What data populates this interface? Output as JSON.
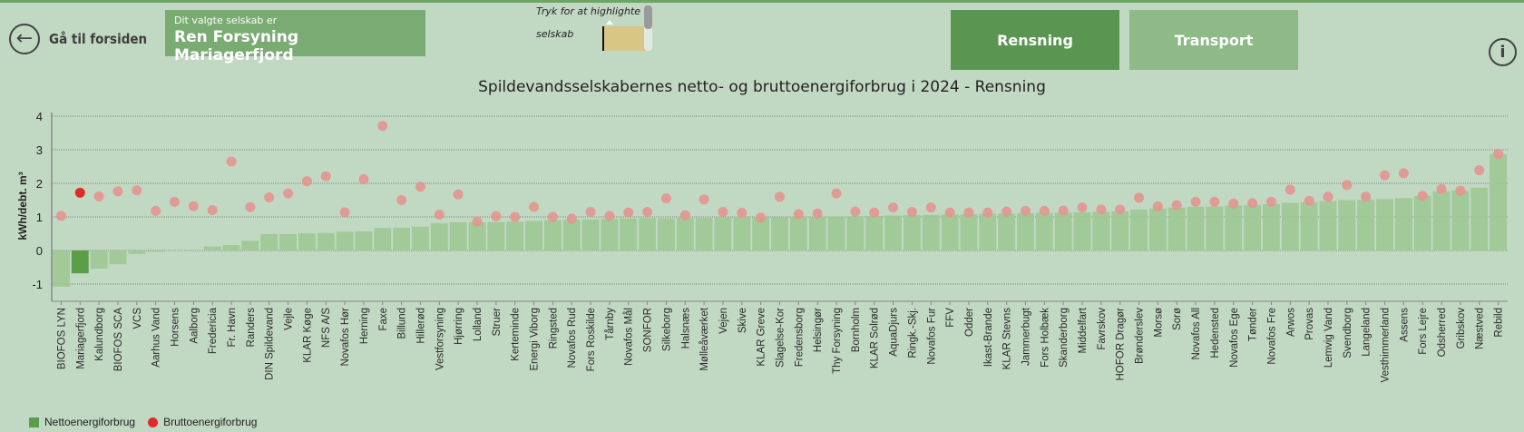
{
  "header": {
    "back_label": "Gå til forsiden",
    "selected_caption": "Dit valgte selskab er",
    "selected_company": "Ren Forsyning Mariagerfjord",
    "highlight_line1": "Tryk for at highlighte",
    "highlight_line2": "selskab",
    "tabs": [
      {
        "label": "Rensning",
        "active": true
      },
      {
        "label": "Transport",
        "active": false
      }
    ],
    "info_icon": "info-icon",
    "back_icon": "arrow-left-circle-icon"
  },
  "colors": {
    "net": "#9cc791",
    "net_selected": "#5a9e4c",
    "gross": "#e3968f",
    "gross_selected": "#e02a2a",
    "background": "#c1d8c3"
  },
  "chart_data": {
    "type": "bar+scatter",
    "title": "Spildevandsselskabernes netto- og bruttoenergiforbrug i 2024 - Rensning",
    "ylabel": "kWh/debt. m³",
    "xlabel": "",
    "ylim": [
      -1.5,
      4
    ],
    "yticks": [
      -1,
      0,
      1,
      2,
      3,
      4
    ],
    "grid": true,
    "legend_position": "bottom-left",
    "highlighted": "Mariagerfjord",
    "categories": [
      "BIOFOS LYN",
      "Mariagerfjord",
      "Kalundborg",
      "BIOFOS SCA",
      "VCS",
      "Aarhus Vand",
      "Horsens",
      "Aalborg",
      "Fredericia",
      "Fr. Havn",
      "Randers",
      "DIN Spildevand",
      "Vejle",
      "KLAR Køge",
      "NFS A/S",
      "Novafos Hør",
      "Herning",
      "Faxe",
      "Billund",
      "Hillerød",
      "Vestforsyning",
      "Hjørring",
      "Lolland",
      "Struer",
      "Kerteminde",
      "Energi Viborg",
      "Ringsted",
      "Novafos Rud",
      "Fors Roskilde",
      "Tårnby",
      "Novafos Mål",
      "SONFOR",
      "Silkeborg",
      "Halsnæs",
      "Mølleåværket",
      "Vejen",
      "Skive",
      "KLAR Greve",
      "Slagelse-Kor",
      "Fredensborg",
      "Helsingør",
      "Thy Forsyning",
      "Bornholm",
      "KLAR Solrød",
      "AquaDjurs",
      "Ringk.-Skj.",
      "Novafos Fur",
      "FFV",
      "Odder",
      "Ikast-Brande",
      "KLAR Stevns",
      "Jammerbugt",
      "Fors Holbæk",
      "Skanderborg",
      "Middelfart",
      "Favrskov",
      "HOFOR Dragør",
      "Brønderslev",
      "Morsø",
      "Sorø",
      "Novafos All",
      "Hedensted",
      "Novafos Ege",
      "Tønder",
      "Novafos Fre",
      "Arwos",
      "Provas",
      "Lemvig Vand",
      "Svendborg",
      "Langeland",
      "Vesthimmerland",
      "Assens",
      "Fors Lejre",
      "Odsherred",
      "Gribskov",
      "Næstved",
      "Rebild"
    ],
    "series": [
      {
        "name": "Nettoenergiforbrug",
        "type": "bar",
        "values": [
          -1.08,
          -0.68,
          -0.54,
          -0.41,
          -0.1,
          -0.04,
          -0.01,
          0.01,
          0.12,
          0.16,
          0.29,
          0.49,
          0.49,
          0.51,
          0.52,
          0.56,
          0.57,
          0.67,
          0.68,
          0.71,
          0.81,
          0.84,
          0.84,
          0.85,
          0.86,
          0.88,
          0.9,
          0.92,
          0.93,
          0.94,
          0.95,
          0.96,
          0.96,
          0.97,
          0.97,
          0.98,
          0.98,
          0.99,
          0.99,
          1.0,
          1.0,
          1.01,
          1.02,
          1.03,
          1.04,
          1.05,
          1.06,
          1.07,
          1.08,
          1.09,
          1.1,
          1.11,
          1.12,
          1.13,
          1.14,
          1.15,
          1.16,
          1.22,
          1.25,
          1.28,
          1.3,
          1.31,
          1.34,
          1.35,
          1.38,
          1.42,
          1.44,
          1.47,
          1.5,
          1.51,
          1.53,
          1.56,
          1.63,
          1.76,
          1.79,
          1.87,
          2.87
        ]
      },
      {
        "name": "Bruttoenergiforbrug",
        "type": "scatter",
        "values": [
          1.03,
          1.72,
          1.61,
          1.76,
          1.79,
          1.18,
          1.45,
          1.32,
          1.2,
          2.65,
          1.29,
          1.58,
          1.7,
          2.06,
          2.21,
          1.14,
          2.12,
          3.71,
          1.5,
          1.9,
          1.07,
          1.67,
          0.86,
          1.02,
          1.0,
          1.3,
          1.0,
          0.95,
          1.15,
          1.03,
          1.13,
          1.15,
          1.55,
          1.05,
          1.52,
          1.15,
          1.12,
          0.98,
          1.6,
          1.08,
          1.1,
          1.7,
          1.16,
          1.13,
          1.28,
          1.15,
          1.28,
          1.13,
          1.13,
          1.13,
          1.16,
          1.18,
          1.18,
          1.19,
          1.28,
          1.22,
          1.22,
          1.57,
          1.31,
          1.35,
          1.45,
          1.45,
          1.4,
          1.41,
          1.45,
          1.81,
          1.48,
          1.6,
          1.95,
          1.6,
          2.24,
          2.3,
          1.63,
          1.83,
          1.78,
          2.39,
          2.88
        ]
      }
    ]
  }
}
